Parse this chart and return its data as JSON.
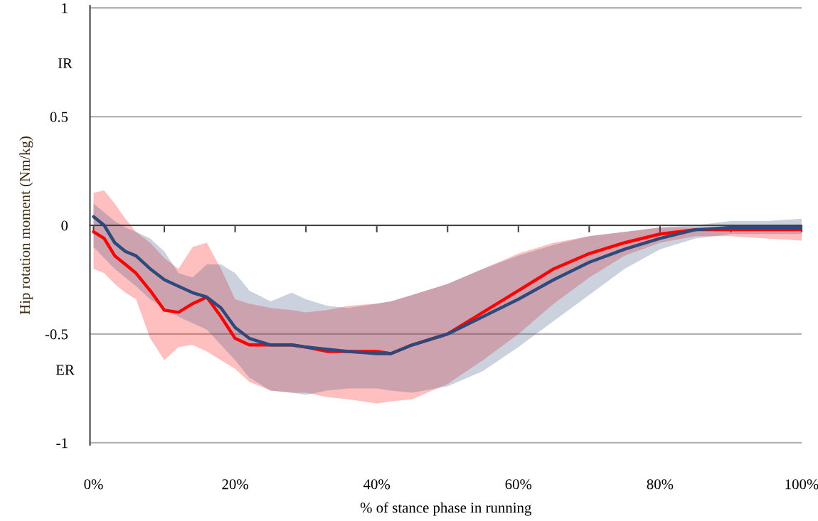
{
  "chart_data": {
    "type": "line",
    "xlabel": "% of stance phase in running",
    "ylabel": "Hip rotation moment (Nm/kg)",
    "annotations": [
      "IR",
      "ER"
    ],
    "xlim": [
      -0.5,
      100
    ],
    "ylim": [
      -1.01,
      1.01
    ],
    "xticks": [
      {
        "value": 0,
        "label": "0%"
      },
      {
        "value": 10,
        "label": null
      },
      {
        "value": 20,
        "label": "20%"
      },
      {
        "value": 30,
        "label": null
      },
      {
        "value": 40,
        "label": "40%"
      },
      {
        "value": 50,
        "label": null
      },
      {
        "value": 60,
        "label": "60%"
      },
      {
        "value": 70,
        "label": null
      },
      {
        "value": 80,
        "label": "80%"
      },
      {
        "value": 90,
        "label": null
      },
      {
        "value": 100,
        "label": "100%"
      }
    ],
    "yticks": [
      1,
      0.5,
      0,
      -0.5,
      -1
    ],
    "grid": "y",
    "marker": "none",
    "line_style": "solid",
    "series": [
      {
        "color": "#ff0000",
        "x": [
          0,
          1.5,
          3,
          4.5,
          6,
          8,
          10,
          12,
          14,
          16,
          18,
          20,
          22,
          25,
          28,
          30,
          33,
          36,
          40,
          42,
          45,
          50,
          55,
          60,
          65,
          70,
          75,
          80,
          85,
          90,
          95,
          100
        ],
        "values": [
          -0.03,
          -0.06,
          -0.14,
          -0.18,
          -0.22,
          -0.3,
          -0.39,
          -0.4,
          -0.36,
          -0.33,
          -0.42,
          -0.52,
          -0.55,
          -0.55,
          -0.55,
          -0.56,
          -0.58,
          -0.58,
          -0.58,
          -0.59,
          -0.55,
          -0.5,
          -0.4,
          -0.3,
          -0.2,
          -0.13,
          -0.08,
          -0.04,
          -0.02,
          -0.02,
          -0.02,
          -0.02
        ],
        "upper": [
          0.15,
          0.16,
          0.1,
          0.03,
          -0.03,
          -0.08,
          -0.15,
          -0.2,
          -0.1,
          -0.08,
          -0.2,
          -0.34,
          -0.36,
          -0.38,
          -0.39,
          -0.4,
          -0.39,
          -0.37,
          -0.36,
          -0.35,
          -0.32,
          -0.27,
          -0.2,
          -0.13,
          -0.08,
          -0.05,
          -0.03,
          -0.01,
          -0.01,
          -0.01,
          -0.01,
          -0.01
        ],
        "lower": [
          -0.2,
          -0.22,
          -0.27,
          -0.31,
          -0.34,
          -0.52,
          -0.62,
          -0.56,
          -0.55,
          -0.58,
          -0.62,
          -0.66,
          -0.72,
          -0.76,
          -0.77,
          -0.77,
          -0.79,
          -0.8,
          -0.82,
          -0.81,
          -0.8,
          -0.73,
          -0.62,
          -0.5,
          -0.36,
          -0.24,
          -0.14,
          -0.08,
          -0.05,
          -0.05,
          -0.06,
          -0.07
        ]
      },
      {
        "color": "#2e4a7d",
        "x": [
          0,
          1.5,
          3,
          4.5,
          6,
          8,
          10,
          12,
          14,
          16,
          18,
          20,
          22,
          25,
          28,
          30,
          33,
          36,
          40,
          42,
          45,
          50,
          55,
          60,
          65,
          70,
          75,
          80,
          85,
          90,
          95,
          100
        ],
        "values": [
          0.04,
          0.0,
          -0.08,
          -0.12,
          -0.14,
          -0.2,
          -0.25,
          -0.28,
          -0.31,
          -0.33,
          -0.38,
          -0.47,
          -0.52,
          -0.55,
          -0.55,
          -0.56,
          -0.57,
          -0.58,
          -0.59,
          -0.59,
          -0.55,
          -0.5,
          -0.42,
          -0.34,
          -0.25,
          -0.17,
          -0.11,
          -0.06,
          -0.02,
          -0.01,
          -0.01,
          -0.01
        ],
        "upper": [
          0.1,
          0.06,
          0.02,
          -0.01,
          -0.03,
          -0.06,
          -0.12,
          -0.22,
          -0.24,
          -0.18,
          -0.18,
          -0.22,
          -0.3,
          -0.35,
          -0.31,
          -0.34,
          -0.37,
          -0.38,
          -0.36,
          -0.35,
          -0.32,
          -0.27,
          -0.2,
          -0.14,
          -0.09,
          -0.05,
          -0.03,
          -0.01,
          0.0,
          0.02,
          0.02,
          0.03
        ],
        "lower": [
          -0.1,
          -0.15,
          -0.2,
          -0.24,
          -0.28,
          -0.34,
          -0.38,
          -0.42,
          -0.45,
          -0.48,
          -0.55,
          -0.62,
          -0.7,
          -0.76,
          -0.77,
          -0.78,
          -0.76,
          -0.75,
          -0.75,
          -0.76,
          -0.77,
          -0.74,
          -0.67,
          -0.56,
          -0.44,
          -0.32,
          -0.2,
          -0.11,
          -0.06,
          -0.04,
          -0.04,
          -0.04
        ]
      }
    ]
  }
}
